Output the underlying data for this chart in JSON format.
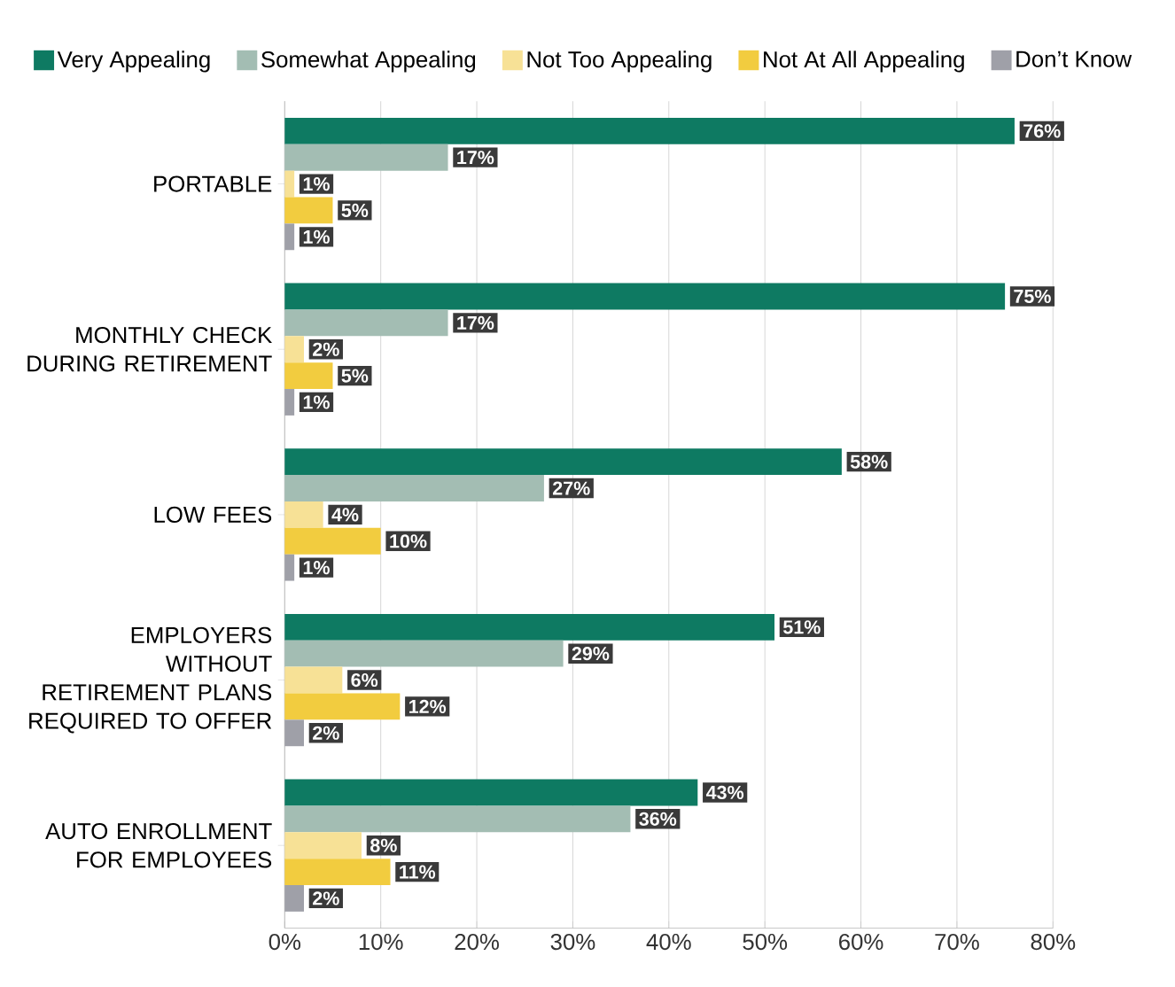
{
  "chart_data": {
    "type": "bar",
    "orientation": "horizontal",
    "categories": [
      "PORTABLE",
      "MONTHLY CHECK DURING RETIREMENT",
      "LOW FEES",
      "EMPLOYERS WITHOUT RETIREMENT PLANS REQUIRED TO OFFER",
      "AUTO ENROLLMENT FOR EMPLOYEES"
    ],
    "series": [
      {
        "name": "Very Appealing",
        "color": "#0e7a62",
        "values": [
          76,
          75,
          58,
          51,
          43
        ],
        "value_labels": [
          "76%",
          "75%",
          "58%",
          "51%",
          "43%"
        ]
      },
      {
        "name": "Somewhat Appealing",
        "color": "#a3bdb3",
        "values": [
          17,
          17,
          27,
          29,
          36
        ],
        "value_labels": [
          "17%",
          "17%",
          "27%",
          "29%",
          "36%"
        ]
      },
      {
        "name": "Not Too Appealing",
        "color": "#f7e196",
        "values": [
          1,
          2,
          4,
          6,
          8
        ],
        "value_labels": [
          "1%",
          "2%",
          "4%",
          "6%",
          "8%"
        ]
      },
      {
        "name": "Not At All Appealing",
        "color": "#f2cc3f",
        "values": [
          5,
          5,
          10,
          12,
          11
        ],
        "value_labels": [
          "5%",
          "5%",
          "10%",
          "12%",
          "11%"
        ]
      },
      {
        "name": "Don’t Know",
        "color": "#9fa0a8",
        "values": [
          1,
          1,
          1,
          2,
          2
        ],
        "value_labels": [
          "1%",
          "1%",
          "1%",
          "2%",
          "2%"
        ]
      }
    ],
    "xlim": [
      0,
      80
    ],
    "xticks": [
      {
        "value": 0,
        "label": "0%"
      },
      {
        "value": 10,
        "label": "10%"
      },
      {
        "value": 20,
        "label": "20%"
      },
      {
        "value": 30,
        "label": "30%"
      },
      {
        "value": 40,
        "label": "40%"
      },
      {
        "value": 50,
        "label": "50%"
      },
      {
        "value": 60,
        "label": "60%"
      },
      {
        "value": 70,
        "label": "70%"
      },
      {
        "value": 80,
        "label": "80%"
      }
    ],
    "grid": "x",
    "legend": "top"
  }
}
